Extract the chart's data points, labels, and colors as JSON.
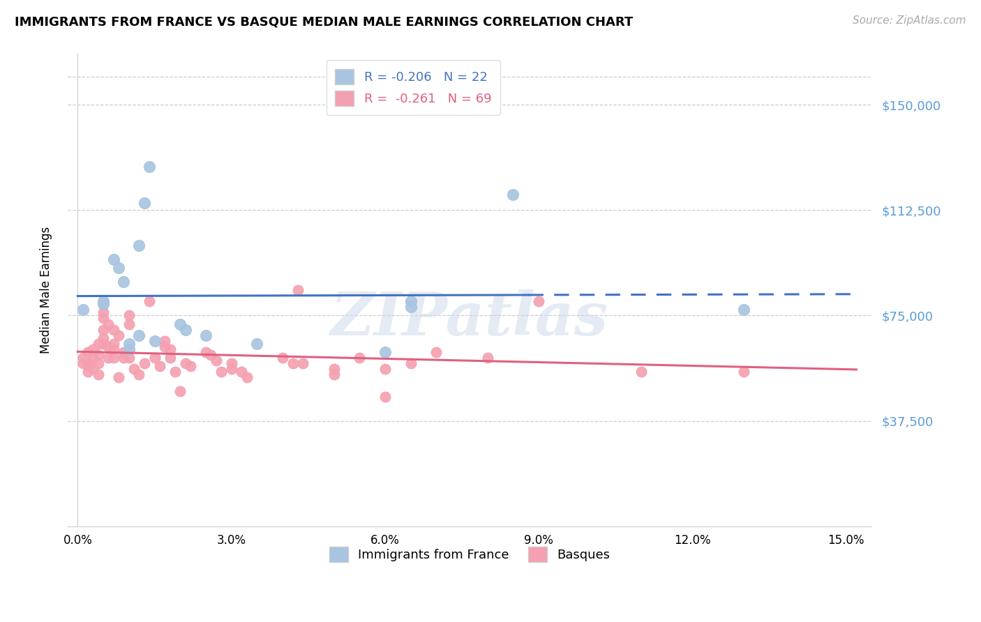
{
  "title": "IMMIGRANTS FROM FRANCE VS BASQUE MEDIAN MALE EARNINGS CORRELATION CHART",
  "source": "Source: ZipAtlas.com",
  "ylabel": "Median Male Earnings",
  "yticks": [
    0,
    37500,
    75000,
    112500,
    150000
  ],
  "ytick_labels": [
    "",
    "$37,500",
    "$75,000",
    "$112,500",
    "$150,000"
  ],
  "legend_france": "R = -0.206   N = 22",
  "legend_basque": "R =  -0.261   N = 69",
  "legend_france_label": "Immigrants from France",
  "legend_basque_label": "Basques",
  "france_color": "#a8c4e0",
  "basque_color": "#f4a0b0",
  "france_line_color": "#4472c4",
  "basque_line_color": "#e06080",
  "france_points": [
    [
      0.001,
      77000
    ],
    [
      0.005,
      80000
    ],
    [
      0.005,
      79000
    ],
    [
      0.007,
      95000
    ],
    [
      0.008,
      92000
    ],
    [
      0.009,
      87000
    ],
    [
      0.01,
      63000
    ],
    [
      0.01,
      65000
    ],
    [
      0.012,
      100000
    ],
    [
      0.012,
      68000
    ],
    [
      0.013,
      115000
    ],
    [
      0.014,
      128000
    ],
    [
      0.015,
      66000
    ],
    [
      0.02,
      72000
    ],
    [
      0.021,
      70000
    ],
    [
      0.025,
      68000
    ],
    [
      0.035,
      65000
    ],
    [
      0.06,
      62000
    ],
    [
      0.065,
      80000
    ],
    [
      0.065,
      78000
    ],
    [
      0.085,
      118000
    ],
    [
      0.13,
      77000
    ]
  ],
  "basque_points": [
    [
      0.001,
      60000
    ],
    [
      0.001,
      58000
    ],
    [
      0.002,
      62000
    ],
    [
      0.002,
      58000
    ],
    [
      0.002,
      55000
    ],
    [
      0.002,
      57000
    ],
    [
      0.003,
      63000
    ],
    [
      0.003,
      60000
    ],
    [
      0.003,
      56000
    ],
    [
      0.004,
      65000
    ],
    [
      0.004,
      61000
    ],
    [
      0.004,
      58000
    ],
    [
      0.004,
      54000
    ],
    [
      0.005,
      76000
    ],
    [
      0.005,
      74000
    ],
    [
      0.005,
      70000
    ],
    [
      0.005,
      67000
    ],
    [
      0.005,
      65000
    ],
    [
      0.006,
      72000
    ],
    [
      0.006,
      64000
    ],
    [
      0.006,
      60000
    ],
    [
      0.007,
      70000
    ],
    [
      0.007,
      65000
    ],
    [
      0.007,
      63000
    ],
    [
      0.007,
      60000
    ],
    [
      0.008,
      68000
    ],
    [
      0.008,
      53000
    ],
    [
      0.009,
      62000
    ],
    [
      0.009,
      60000
    ],
    [
      0.01,
      75000
    ],
    [
      0.01,
      72000
    ],
    [
      0.01,
      60000
    ],
    [
      0.011,
      56000
    ],
    [
      0.012,
      54000
    ],
    [
      0.013,
      58000
    ],
    [
      0.014,
      80000
    ],
    [
      0.015,
      60000
    ],
    [
      0.016,
      57000
    ],
    [
      0.017,
      66000
    ],
    [
      0.017,
      64000
    ],
    [
      0.018,
      63000
    ],
    [
      0.018,
      60000
    ],
    [
      0.019,
      55000
    ],
    [
      0.02,
      48000
    ],
    [
      0.021,
      58000
    ],
    [
      0.022,
      57000
    ],
    [
      0.025,
      62000
    ],
    [
      0.026,
      61000
    ],
    [
      0.027,
      59000
    ],
    [
      0.028,
      55000
    ],
    [
      0.03,
      58000
    ],
    [
      0.03,
      56000
    ],
    [
      0.032,
      55000
    ],
    [
      0.033,
      53000
    ],
    [
      0.04,
      60000
    ],
    [
      0.042,
      58000
    ],
    [
      0.043,
      84000
    ],
    [
      0.044,
      58000
    ],
    [
      0.05,
      56000
    ],
    [
      0.05,
      54000
    ],
    [
      0.055,
      60000
    ],
    [
      0.06,
      56000
    ],
    [
      0.06,
      46000
    ],
    [
      0.065,
      58000
    ],
    [
      0.07,
      62000
    ],
    [
      0.08,
      60000
    ],
    [
      0.09,
      80000
    ],
    [
      0.11,
      55000
    ],
    [
      0.13,
      55000
    ]
  ]
}
